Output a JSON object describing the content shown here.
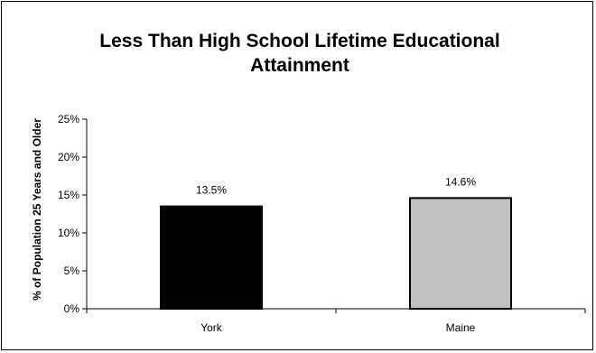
{
  "chart_data": {
    "type": "bar",
    "title": "Less Than High School Lifetime Educational Attainment",
    "xlabel": "",
    "ylabel": "% of Population 25 Years and Older",
    "categories": [
      "York",
      "Maine"
    ],
    "values": [
      13.5,
      14.6
    ],
    "data_labels": [
      "13.5%",
      "14.6%"
    ],
    "bar_colors": [
      "#000000",
      "#c0c0c0"
    ],
    "ylim": [
      0,
      25
    ],
    "y_ticks": [
      0,
      5,
      10,
      15,
      20,
      25
    ],
    "y_tick_labels": [
      "0%",
      "5%",
      "10%",
      "15%",
      "20%",
      "25%"
    ],
    "grid": false,
    "legend": "none"
  }
}
